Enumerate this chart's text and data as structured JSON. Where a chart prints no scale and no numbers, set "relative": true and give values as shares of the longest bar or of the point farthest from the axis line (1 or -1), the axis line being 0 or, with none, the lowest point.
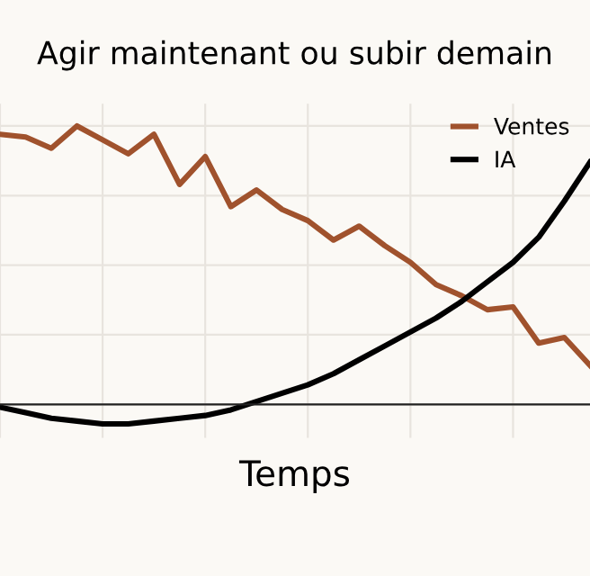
{
  "chart_data": {
    "type": "line",
    "title": "Agir maintenant ou subir demain",
    "xlabel": "Temps",
    "relative": true,
    "categories": [
      null,
      null,
      null,
      null,
      null,
      null,
      null,
      null,
      null,
      null,
      null,
      null,
      null,
      null,
      null,
      null,
      null,
      null,
      null,
      null,
      null,
      null,
      null,
      null
    ],
    "tick_labels": false,
    "grid": true,
    "legend": "top right",
    "marker": "none",
    "line_style": "solid",
    "series": [
      {
        "name": "Ventes",
        "color": "#a0522d",
        "values": [
          0.97,
          0.96,
          0.92,
          1.0,
          0.95,
          0.9,
          0.97,
          0.79,
          0.89,
          0.71,
          0.77,
          0.7,
          0.66,
          0.59,
          0.64,
          0.57,
          0.51,
          0.43,
          0.39,
          0.34,
          0.35,
          0.22,
          0.24,
          0.14
        ]
      },
      {
        "name": "IA",
        "color": "#000000",
        "values": [
          -0.01,
          -0.03,
          -0.05,
          -0.06,
          -0.07,
          -0.07,
          -0.06,
          -0.05,
          -0.04,
          -0.02,
          0.01,
          0.04,
          0.07,
          0.11,
          0.16,
          0.21,
          0.26,
          0.31,
          0.37,
          0.44,
          0.51,
          0.6,
          0.73,
          0.87
        ]
      }
    ]
  }
}
